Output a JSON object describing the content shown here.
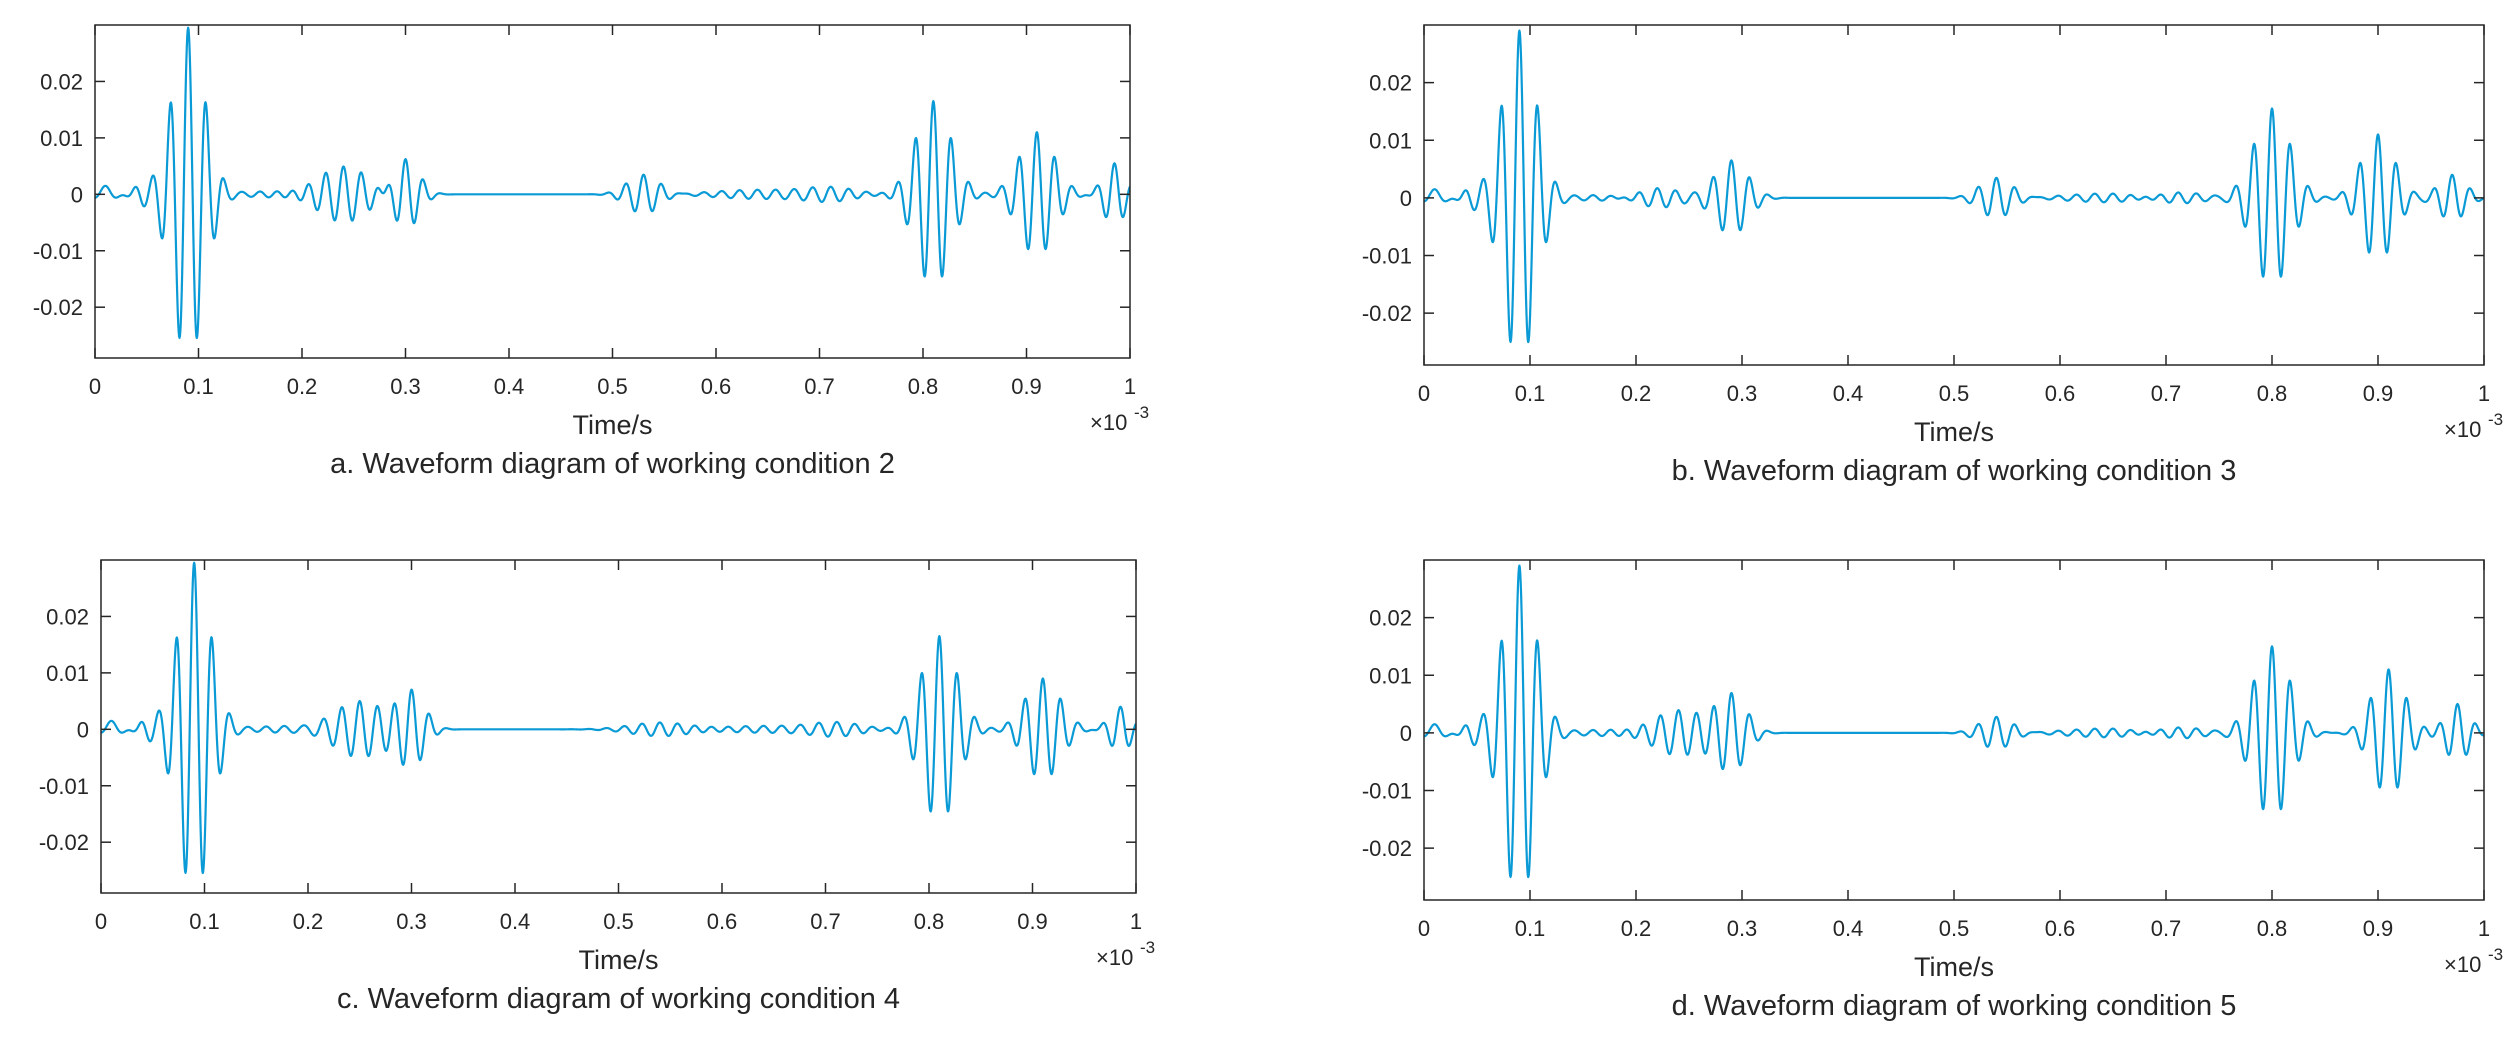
{
  "chart_data": [
    {
      "type": "line",
      "id": "a",
      "caption": "a.  Waveform diagram of working condition 2",
      "xlabel": "Time/s",
      "ylabel": "",
      "x_exponent_base": "×10",
      "x_exponent_power": "-3",
      "xlim": [
        0,
        1
      ],
      "ylim": [
        -0.029,
        0.03
      ],
      "xticks": [
        0,
        0.1,
        0.2,
        0.3,
        0.4,
        0.5,
        0.6,
        0.7,
        0.8,
        0.9,
        1
      ],
      "xtick_labels": [
        "0",
        "0.1",
        "0.2",
        "0.3",
        "0.4",
        "0.5",
        "0.6",
        "0.7",
        "0.8",
        "0.9",
        "1"
      ],
      "yticks": [
        0.02,
        0.01,
        0,
        -0.01,
        -0.02
      ],
      "ytick_labels": [
        "0.02",
        "0.01",
        "0",
        "-0.01",
        "-0.02"
      ],
      "line_color": "#0a9ad6",
      "series": [
        {
          "name": "waveform",
          "packets": [
            {
              "center": 0.01,
              "amp": 0.0015,
              "width": 0.012,
              "freq": 40
            },
            {
              "center": 0.09,
              "amp": 0.0295,
              "width": 0.022,
              "freq": 58
            },
            {
              "center": 0.24,
              "amp": 0.005,
              "width": 0.035,
              "freq": 58
            },
            {
              "center": 0.3,
              "amp": 0.0065,
              "width": 0.018,
              "freq": 58
            },
            {
              "center": 0.53,
              "amp": 0.0035,
              "width": 0.022,
              "freq": 58
            },
            {
              "center": 0.64,
              "amp": 0.0008,
              "width": 0.06,
              "freq": 58
            },
            {
              "center": 0.81,
              "amp": 0.0165,
              "width": 0.024,
              "freq": 58
            },
            {
              "center": 0.91,
              "amp": 0.011,
              "width": 0.024,
              "freq": 58
            },
            {
              "center": 0.985,
              "amp": 0.0055,
              "width": 0.015,
              "freq": 58
            }
          ]
        }
      ]
    },
    {
      "type": "line",
      "id": "b",
      "caption": "b.  Waveform diagram of working condition 3",
      "xlabel": "Time/s",
      "ylabel": "",
      "x_exponent_base": "×10",
      "x_exponent_power": "-3",
      "xlim": [
        0,
        1
      ],
      "ylim": [
        -0.029,
        0.03
      ],
      "xticks": [
        0,
        0.1,
        0.2,
        0.3,
        0.4,
        0.5,
        0.6,
        0.7,
        0.8,
        0.9,
        1
      ],
      "xtick_labels": [
        "0",
        "0.1",
        "0.2",
        "0.3",
        "0.4",
        "0.5",
        "0.6",
        "0.7",
        "0.8",
        "0.9",
        "1"
      ],
      "yticks": [
        0.02,
        0.01,
        0,
        -0.01,
        -0.02
      ],
      "ytick_labels": [
        "0.02",
        "0.01",
        "0",
        "-0.01",
        "-0.02"
      ],
      "line_color": "#0a9ad6",
      "series": [
        {
          "name": "waveform",
          "packets": [
            {
              "center": 0.01,
              "amp": 0.0015,
              "width": 0.012,
              "freq": 40
            },
            {
              "center": 0.09,
              "amp": 0.029,
              "width": 0.022,
              "freq": 58
            },
            {
              "center": 0.22,
              "amp": 0.002,
              "width": 0.03,
              "freq": 58
            },
            {
              "center": 0.29,
              "amp": 0.0065,
              "width": 0.022,
              "freq": 58
            },
            {
              "center": 0.54,
              "amp": 0.0035,
              "width": 0.022,
              "freq": 58
            },
            {
              "center": 0.65,
              "amp": 0.0008,
              "width": 0.06,
              "freq": 58
            },
            {
              "center": 0.8,
              "amp": 0.0155,
              "width": 0.024,
              "freq": 58
            },
            {
              "center": 0.9,
              "amp": 0.011,
              "width": 0.022,
              "freq": 58
            },
            {
              "center": 0.97,
              "amp": 0.004,
              "width": 0.018,
              "freq": 58
            }
          ]
        }
      ]
    },
    {
      "type": "line",
      "id": "c",
      "caption": "c.  Waveform diagram of working condition 4",
      "xlabel": "Time/s",
      "ylabel": "",
      "x_exponent_base": "×10",
      "x_exponent_power": "-3",
      "xlim": [
        0,
        1
      ],
      "ylim": [
        -0.029,
        0.03
      ],
      "xticks": [
        0,
        0.1,
        0.2,
        0.3,
        0.4,
        0.5,
        0.6,
        0.7,
        0.8,
        0.9,
        1
      ],
      "xtick_labels": [
        "0",
        "0.1",
        "0.2",
        "0.3",
        "0.4",
        "0.5",
        "0.6",
        "0.7",
        "0.8",
        "0.9",
        "1"
      ],
      "yticks": [
        0.02,
        0.01,
        0,
        -0.01,
        -0.02
      ],
      "ytick_labels": [
        "0.02",
        "0.01",
        "0",
        "-0.01",
        "-0.02"
      ],
      "line_color": "#0a9ad6",
      "series": [
        {
          "name": "waveform",
          "packets": [
            {
              "center": 0.01,
              "amp": 0.0015,
              "width": 0.012,
              "freq": 40
            },
            {
              "center": 0.09,
              "amp": 0.0295,
              "width": 0.022,
              "freq": 58
            },
            {
              "center": 0.25,
              "amp": 0.005,
              "width": 0.035,
              "freq": 58
            },
            {
              "center": 0.3,
              "amp": 0.0065,
              "width": 0.018,
              "freq": 58
            },
            {
              "center": 0.54,
              "amp": 0.0012,
              "width": 0.04,
              "freq": 58
            },
            {
              "center": 0.64,
              "amp": 0.0006,
              "width": 0.06,
              "freq": 58
            },
            {
              "center": 0.81,
              "amp": 0.0165,
              "width": 0.024,
              "freq": 58
            },
            {
              "center": 0.91,
              "amp": 0.009,
              "width": 0.024,
              "freq": 58
            },
            {
              "center": 0.985,
              "amp": 0.004,
              "width": 0.015,
              "freq": 58
            }
          ]
        }
      ]
    },
    {
      "type": "line",
      "id": "d",
      "caption": "d.  Waveform diagram of working condition 5",
      "xlabel": "Time/s",
      "ylabel": "",
      "x_exponent_base": "×10",
      "x_exponent_power": "-3",
      "xlim": [
        0,
        1
      ],
      "ylim": [
        -0.029,
        0.03
      ],
      "xticks": [
        0,
        0.1,
        0.2,
        0.3,
        0.4,
        0.5,
        0.6,
        0.7,
        0.8,
        0.9,
        1
      ],
      "xtick_labels": [
        "0",
        "0.1",
        "0.2",
        "0.3",
        "0.4",
        "0.5",
        "0.6",
        "0.7",
        "0.8",
        "0.9",
        "1"
      ],
      "yticks": [
        0.02,
        0.01,
        0,
        -0.01,
        -0.02
      ],
      "ytick_labels": [
        "0.02",
        "0.01",
        "0",
        "-0.01",
        "-0.02"
      ],
      "line_color": "#0a9ad6",
      "series": [
        {
          "name": "waveform",
          "packets": [
            {
              "center": 0.01,
              "amp": 0.0015,
              "width": 0.012,
              "freq": 40
            },
            {
              "center": 0.09,
              "amp": 0.029,
              "width": 0.022,
              "freq": 58
            },
            {
              "center": 0.24,
              "amp": 0.004,
              "width": 0.035,
              "freq": 58
            },
            {
              "center": 0.29,
              "amp": 0.0065,
              "width": 0.02,
              "freq": 58
            },
            {
              "center": 0.54,
              "amp": 0.0028,
              "width": 0.022,
              "freq": 58
            },
            {
              "center": 0.65,
              "amp": 0.0008,
              "width": 0.06,
              "freq": 58
            },
            {
              "center": 0.8,
              "amp": 0.015,
              "width": 0.024,
              "freq": 58
            },
            {
              "center": 0.91,
              "amp": 0.011,
              "width": 0.022,
              "freq": 58
            },
            {
              "center": 0.975,
              "amp": 0.005,
              "width": 0.016,
              "freq": 58
            }
          ]
        }
      ]
    }
  ]
}
